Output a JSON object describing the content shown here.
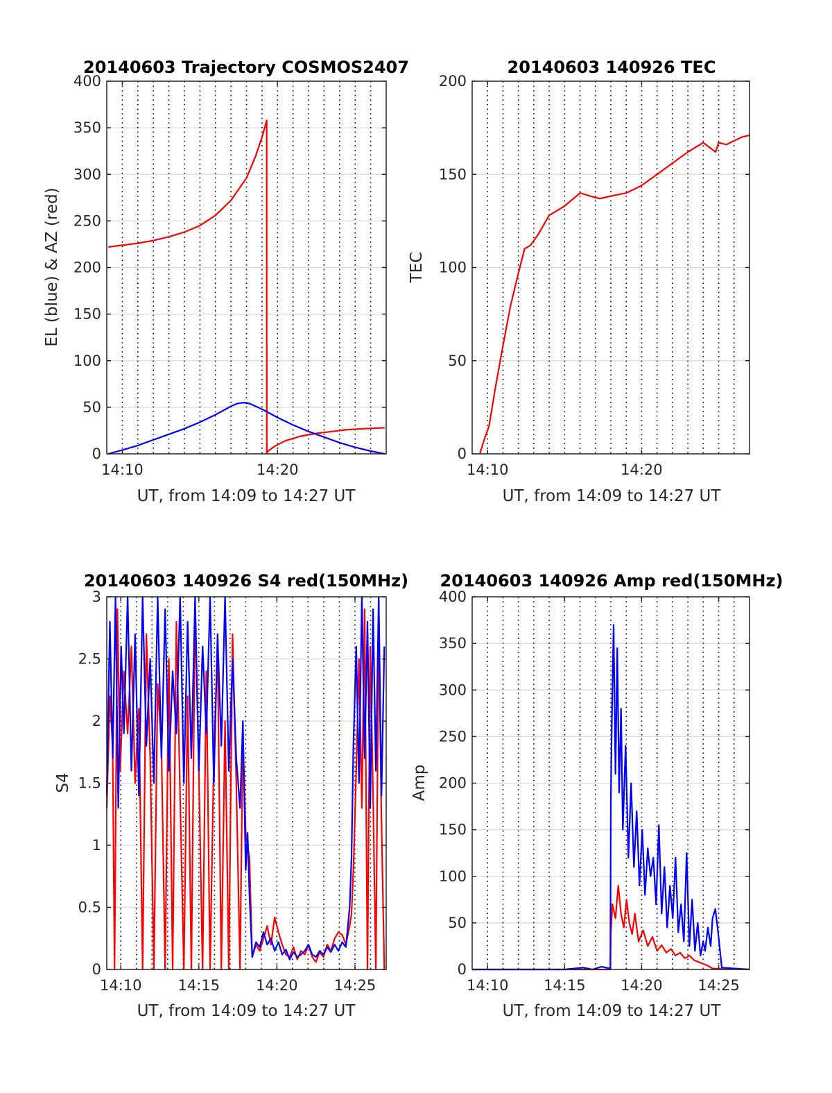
{
  "colors": {
    "red": "#ff0000",
    "blue": "#0000ff",
    "axis": "#262626",
    "grid": "#d9d9d9",
    "vgrid": "#000000"
  },
  "chart_data": [
    {
      "id": "trajectory",
      "type": "line",
      "title": "20140603 Trajectory COSMOS2407",
      "xlabel": "UT, from 14:09 to 14:27 UT",
      "ylabel": "EL (blue) & AZ (red)",
      "xlim": [
        14.15,
        14.45
      ],
      "ylim": [
        0,
        400
      ],
      "xticks": [
        {
          "v": 14.1667,
          "label": "14:10"
        },
        {
          "v": 14.3333,
          "label": "14:20"
        }
      ],
      "yticks": [
        0,
        50,
        100,
        150,
        200,
        250,
        300,
        350,
        400
      ],
      "series": [
        {
          "color": "red",
          "x": [
            14.1517,
            14.1667,
            14.1833,
            14.2,
            14.2167,
            14.2333,
            14.25,
            14.2667,
            14.2833,
            14.3,
            14.31,
            14.3167,
            14.3217,
            14.3218,
            14.3233,
            14.33,
            14.3417,
            14.3583,
            14.375,
            14.3917,
            14.4083,
            14.425,
            14.4483
          ],
          "y": [
            222,
            224,
            226,
            229,
            233,
            238,
            245,
            256,
            272,
            296,
            320,
            340,
            358,
            1,
            3,
            8,
            14,
            19,
            22,
            24,
            26,
            27,
            28
          ]
        },
        {
          "color": "blue",
          "x": [
            14.1517,
            14.1667,
            14.1833,
            14.2,
            14.2167,
            14.2333,
            14.25,
            14.2667,
            14.2833,
            14.29,
            14.2967,
            14.3033,
            14.3167,
            14.3333,
            14.35,
            14.3667,
            14.3833,
            14.4,
            14.4167,
            14.4333,
            14.4483
          ],
          "y": [
            0,
            4,
            9,
            15,
            21,
            27,
            34,
            42,
            51,
            54,
            55,
            54,
            48,
            39,
            31,
            24,
            18,
            12,
            7,
            3,
            0
          ]
        }
      ]
    },
    {
      "id": "tec",
      "type": "line",
      "title": "20140603 140926 TEC",
      "xlabel": "UT, from 14:09 to 14:27 UT",
      "ylabel": "TEC",
      "xlim": [
        14.15,
        14.45
      ],
      "ylim": [
        0,
        200
      ],
      "xticks": [
        {
          "v": 14.1667,
          "label": "14:10"
        },
        {
          "v": 14.3333,
          "label": "14:20"
        }
      ],
      "yticks": [
        0,
        50,
        100,
        150,
        200
      ],
      "series": [
        {
          "color": "red",
          "x": [
            14.1583,
            14.1633,
            14.1683,
            14.175,
            14.1833,
            14.1917,
            14.2,
            14.2067,
            14.2133,
            14.2217,
            14.2333,
            14.25,
            14.2667,
            14.28,
            14.2883,
            14.2967,
            14.3167,
            14.3333,
            14.35,
            14.3667,
            14.3833,
            14.4,
            14.4133,
            14.4167,
            14.425,
            14.4333,
            14.4417,
            14.45
          ],
          "y": [
            0,
            8,
            15,
            35,
            58,
            80,
            97,
            110,
            112,
            118,
            128,
            133,
            140,
            138,
            137,
            138,
            140,
            144,
            150,
            156,
            162,
            167,
            162,
            167,
            166,
            168,
            170,
            171
          ]
        }
      ]
    },
    {
      "id": "s4",
      "type": "line",
      "title": "20140603 140926 S4 red(150MHz)",
      "xlabel": "UT, from 14:09 to 14:27 UT",
      "ylabel": "S4",
      "xlim": [
        14.1517,
        14.45
      ],
      "ylim": [
        0,
        3
      ],
      "xticks": [
        {
          "v": 14.1667,
          "label": "14:10"
        },
        {
          "v": 14.25,
          "label": "14:15"
        },
        {
          "v": 14.3333,
          "label": "14:20"
        },
        {
          "v": 14.4167,
          "label": "14:25"
        }
      ],
      "yticks": [
        0,
        0.5,
        1,
        1.5,
        2,
        2.5,
        3
      ],
      "series": [
        {
          "color": "red",
          "x": [
            14.1517,
            14.155,
            14.158,
            14.16,
            14.163,
            14.166,
            14.17,
            14.174,
            14.178,
            14.182,
            14.186,
            14.19,
            14.194,
            14.198,
            14.202,
            14.206,
            14.21,
            14.214,
            14.218,
            14.222,
            14.226,
            14.23,
            14.234,
            14.238,
            14.242,
            14.246,
            14.25,
            14.254,
            14.258,
            14.262,
            14.266,
            14.27,
            14.274,
            14.278,
            14.282,
            14.286,
            14.29,
            14.294,
            14.297,
            14.3,
            14.302,
            14.304,
            14.307,
            14.311,
            14.315,
            14.319,
            14.323,
            14.327,
            14.331,
            14.335,
            14.339,
            14.343,
            14.347,
            14.351,
            14.355,
            14.359,
            14.363,
            14.367,
            14.371,
            14.375,
            14.379,
            14.383,
            14.387,
            14.391,
            14.395,
            14.399,
            14.403,
            14.407,
            14.411,
            14.413,
            14.415,
            14.418,
            14.421,
            14.424,
            14.427,
            14.43,
            14.433,
            14.436,
            14.439,
            14.442,
            14.445,
            14.448
          ],
          "y": [
            1.3,
            2.2,
            1.8,
            0,
            2.9,
            1.6,
            2.4,
            1.9,
            2.6,
            1.5,
            2.1,
            0,
            2.7,
            1.7,
            0,
            2.3,
            1.8,
            0,
            2.5,
            0,
            2.8,
            1.4,
            0,
            2.2,
            0,
            2.9,
            1.6,
            0,
            2.4,
            0,
            1.7,
            2.6,
            0,
            2.0,
            0,
            2.7,
            1.5,
            0,
            1.9,
            1.1,
            1.0,
            0.9,
            0.1,
            0.2,
            0.15,
            0.25,
            0.35,
            0.2,
            0.42,
            0.3,
            0.2,
            0.12,
            0.1,
            0.18,
            0.08,
            0.15,
            0.12,
            0.2,
            0.1,
            0.06,
            0.14,
            0.1,
            0.2,
            0.15,
            0.25,
            0.3,
            0.28,
            0.2,
            0.35,
            0.45,
            0.8,
            1.6,
            2.5,
            1.3,
            2.9,
            0,
            2.6,
            1.4,
            0,
            2.8,
            1.2,
            0
          ]
        },
        {
          "color": "blue",
          "x": [
            14.1517,
            14.155,
            14.158,
            14.161,
            14.164,
            14.167,
            14.17,
            14.174,
            14.178,
            14.182,
            14.186,
            14.19,
            14.194,
            14.198,
            14.202,
            14.206,
            14.21,
            14.214,
            14.218,
            14.222,
            14.226,
            14.23,
            14.234,
            14.238,
            14.242,
            14.246,
            14.25,
            14.254,
            14.258,
            14.262,
            14.266,
            14.27,
            14.274,
            14.278,
            14.282,
            14.286,
            14.29,
            14.294,
            14.297,
            14.3,
            14.302,
            14.304,
            14.307,
            14.311,
            14.315,
            14.319,
            14.323,
            14.327,
            14.331,
            14.335,
            14.339,
            14.343,
            14.347,
            14.351,
            14.355,
            14.359,
            14.363,
            14.367,
            14.371,
            14.375,
            14.379,
            14.383,
            14.387,
            14.391,
            14.395,
            14.399,
            14.403,
            14.407,
            14.411,
            14.413,
            14.415,
            14.418,
            14.421,
            14.424,
            14.427,
            14.43,
            14.433,
            14.436,
            14.439,
            14.442,
            14.445,
            14.448
          ],
          "y": [
            1.4,
            2.8,
            1.7,
            3.0,
            1.3,
            2.6,
            1.9,
            3.0,
            1.6,
            2.7,
            1.4,
            3.0,
            1.8,
            2.5,
            1.5,
            3.0,
            1.7,
            2.9,
            1.6,
            2.4,
            1.9,
            3.0,
            1.5,
            2.8,
            1.7,
            3.0,
            1.6,
            2.6,
            1.9,
            3.0,
            1.5,
            2.7,
            1.8,
            3.0,
            1.6,
            2.5,
            1.7,
            1.3,
            2.0,
            0.8,
            1.1,
            0.6,
            0.1,
            0.22,
            0.18,
            0.3,
            0.2,
            0.25,
            0.15,
            0.22,
            0.12,
            0.16,
            0.08,
            0.14,
            0.1,
            0.12,
            0.15,
            0.2,
            0.12,
            0.1,
            0.15,
            0.12,
            0.18,
            0.14,
            0.2,
            0.15,
            0.22,
            0.18,
            0.5,
            0.9,
            1.8,
            2.6,
            1.5,
            3.0,
            1.7,
            2.8,
            1.3,
            2.9,
            1.6,
            3.0,
            1.4,
            2.6
          ]
        }
      ]
    },
    {
      "id": "amp",
      "type": "line",
      "title": "20140603 140926 Amp red(150MHz)",
      "xlabel": "UT, from 14:09 to 14:27 UT",
      "ylabel": "Amp",
      "xlim": [
        14.15,
        14.45
      ],
      "ylim": [
        0,
        400
      ],
      "xticks": [
        {
          "v": 14.1667,
          "label": "14:10"
        },
        {
          "v": 14.25,
          "label": "14:15"
        },
        {
          "v": 14.3333,
          "label": "14:20"
        },
        {
          "v": 14.4167,
          "label": "14:25"
        }
      ],
      "yticks": [
        0,
        50,
        100,
        150,
        200,
        250,
        300,
        350,
        400
      ],
      "series": [
        {
          "color": "red",
          "x": [
            14.15,
            14.2,
            14.25,
            14.28,
            14.2995,
            14.3,
            14.3017,
            14.305,
            14.308,
            14.311,
            14.314,
            14.317,
            14.32,
            14.323,
            14.326,
            14.33,
            14.335,
            14.34,
            14.345,
            14.35,
            14.355,
            14.36,
            14.365,
            14.37,
            14.375,
            14.38,
            14.385,
            14.39,
            14.395,
            14.4,
            14.405,
            14.41,
            14.45
          ],
          "y": [
            0,
            0,
            0,
            0,
            0,
            40,
            70,
            55,
            90,
            60,
            45,
            75,
            50,
            38,
            60,
            30,
            42,
            25,
            35,
            20,
            26,
            18,
            22,
            15,
            18,
            12,
            15,
            10,
            8,
            6,
            4,
            1,
            0
          ]
        },
        {
          "color": "blue",
          "x": [
            14.15,
            14.2,
            14.25,
            14.27,
            14.28,
            14.29,
            14.2995,
            14.3,
            14.301,
            14.303,
            14.305,
            14.307,
            14.309,
            14.311,
            14.313,
            14.316,
            14.319,
            14.322,
            14.325,
            14.328,
            14.331,
            14.334,
            14.337,
            14.34,
            14.343,
            14.346,
            14.349,
            14.352,
            14.355,
            14.358,
            14.361,
            14.364,
            14.367,
            14.37,
            14.373,
            14.376,
            14.379,
            14.382,
            14.385,
            14.388,
            14.391,
            14.394,
            14.397,
            14.4,
            14.402,
            14.405,
            14.408,
            14.41,
            14.413,
            14.416,
            14.42,
            14.45
          ],
          "y": [
            0,
            0,
            0,
            2,
            0,
            3,
            1,
            180,
            260,
            370,
            210,
            345,
            190,
            280,
            150,
            240,
            120,
            200,
            110,
            170,
            90,
            150,
            80,
            130,
            100,
            120,
            70,
            155,
            60,
            110,
            45,
            90,
            55,
            120,
            40,
            70,
            30,
            125,
            25,
            75,
            20,
            50,
            15,
            30,
            20,
            45,
            25,
            55,
            65,
            40,
            2,
            0
          ]
        }
      ]
    }
  ]
}
